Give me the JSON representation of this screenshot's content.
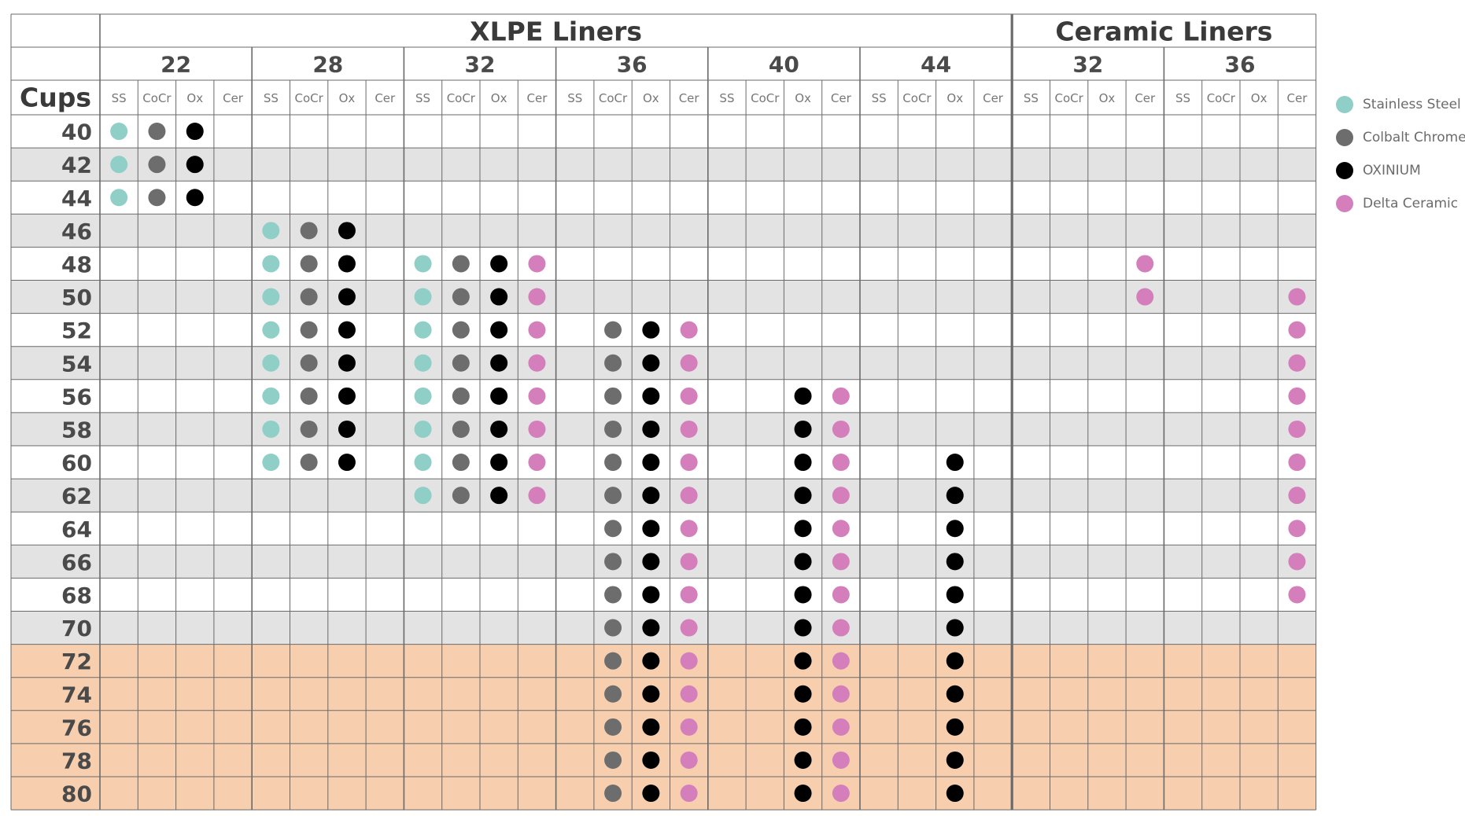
{
  "table": {
    "corner_label": "Cups",
    "groups": [
      {
        "label": "XLPE Liners",
        "sizes": [
          "22",
          "28",
          "32",
          "36",
          "40",
          "44"
        ]
      },
      {
        "label": "Ceramic Liners",
        "sizes": [
          "32",
          "36"
        ]
      }
    ],
    "materials": [
      "SS",
      "CoCr",
      "Ox",
      "Cer"
    ],
    "cups": [
      "40",
      "42",
      "44",
      "46",
      "48",
      "50",
      "52",
      "54",
      "56",
      "58",
      "60",
      "62",
      "64",
      "66",
      "68",
      "70",
      "72",
      "74",
      "76",
      "78",
      "80"
    ],
    "highlighted_cups": [
      "72",
      "74",
      "76",
      "78",
      "80"
    ],
    "rows": [
      "1110 0000 0000 0000 0000 0000 0000 0000",
      "1110 0000 0000 0000 0000 0000 0000 0000",
      "1110 0000 0000 0000 0000 0000 0000 0000",
      "0000 1110 0000 0000 0000 0000 0000 0000",
      "0000 1110 1111 0000 0000 0000 0001 0000",
      "0000 1110 1111 0000 0000 0000 0001 0001",
      "0000 1110 1111 0111 0000 0000 0000 0001",
      "0000 1110 1111 0111 0000 0000 0000 0001",
      "0000 1110 1111 0111 0011 0000 0000 0001",
      "0000 1110 1111 0111 0011 0000 0000 0001",
      "0000 1110 1111 0111 0011 0010 0000 0001",
      "0000 0000 1111 0111 0011 0010 0000 0001",
      "0000 0000 0000 0111 0011 0010 0000 0001",
      "0000 0000 0000 0111 0011 0010 0000 0001",
      "0000 0000 0000 0111 0011 0010 0000 0001",
      "0000 0000 0000 0111 0011 0010 0000 0000",
      "0000 0000 0000 0111 0011 0010 0000 0000",
      "0000 0000 0000 0111 0011 0010 0000 0000",
      "0000 0000 0000 0111 0011 0010 0000 0000",
      "0000 0000 0000 0111 0011 0010 0000 0000",
      "0000 0000 0000 0111 0011 0010 0000 0000"
    ]
  },
  "legend": [
    {
      "label": "Stainless Steel",
      "color": "#8fcfc8"
    },
    {
      "label": "Colbalt Chrome",
      "color": "#6d6d6d"
    },
    {
      "label": "OXINIUM",
      "color": "#000000"
    },
    {
      "label": "Delta Ceramic",
      "color": "#d47fbb"
    }
  ],
  "colors": {
    "row_alt": "#e3e3e3",
    "row_highlight": "#f7cfae",
    "grid_line": "#6a6a6a",
    "header_text": "#4a4a4a"
  }
}
